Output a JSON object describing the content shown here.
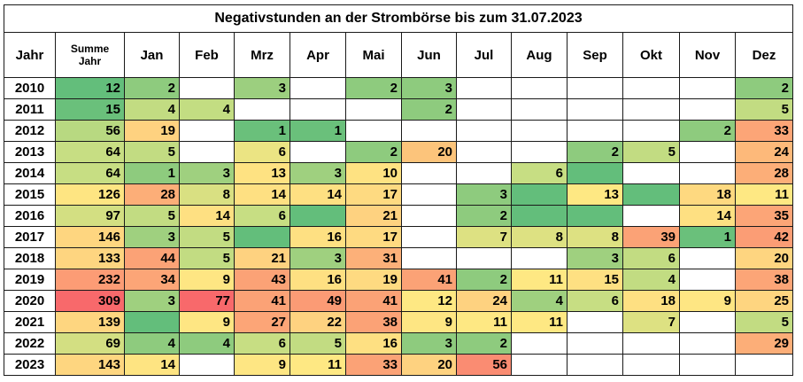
{
  "title": "Negativstunden an der Strombörse bis zum 31.07.2023",
  "header": {
    "year": "Jahr",
    "sum_line1": "Summe",
    "sum_line2": "Jahr",
    "months": [
      "Jan",
      "Feb",
      "Mrz",
      "Apr",
      "Mai",
      "Jun",
      "Jul",
      "Aug",
      "Sep",
      "Okt",
      "Nov",
      "Dez"
    ]
  },
  "chart_data": {
    "type": "table",
    "title": "Negativstunden an der Strombörse bis zum 31.07.2023",
    "columns": [
      "Jahr",
      "Summe Jahr",
      "Jan",
      "Feb",
      "Mrz",
      "Apr",
      "Mai",
      "Jun",
      "Jul",
      "Aug",
      "Sep",
      "Okt",
      "Nov",
      "Dez"
    ],
    "rows": [
      {
        "year": "2010",
        "sum": 12,
        "months": [
          2,
          null,
          3,
          null,
          2,
          3,
          null,
          null,
          null,
          null,
          null,
          2
        ]
      },
      {
        "year": "2011",
        "sum": 15,
        "months": [
          4,
          4,
          null,
          null,
          null,
          2,
          null,
          null,
          null,
          null,
          null,
          5
        ]
      },
      {
        "year": "2012",
        "sum": 56,
        "months": [
          19,
          null,
          1,
          1,
          null,
          null,
          null,
          null,
          null,
          null,
          2,
          33
        ]
      },
      {
        "year": "2013",
        "sum": 64,
        "months": [
          5,
          null,
          6,
          null,
          2,
          20,
          null,
          null,
          2,
          5,
          null,
          24
        ]
      },
      {
        "year": "2014",
        "sum": 64,
        "months": [
          1,
          3,
          13,
          3,
          10,
          null,
          null,
          6,
          null,
          null,
          null,
          28
        ]
      },
      {
        "year": "2015",
        "sum": 126,
        "months": [
          28,
          8,
          14,
          14,
          17,
          null,
          3,
          null,
          13,
          null,
          18,
          11
        ]
      },
      {
        "year": "2016",
        "sum": 97,
        "months": [
          5,
          14,
          6,
          null,
          21,
          null,
          2,
          null,
          null,
          null,
          14,
          35
        ]
      },
      {
        "year": "2017",
        "sum": 146,
        "months": [
          3,
          5,
          null,
          16,
          17,
          null,
          7,
          8,
          8,
          39,
          1,
          42
        ]
      },
      {
        "year": "2018",
        "sum": 133,
        "months": [
          44,
          5,
          21,
          3,
          31,
          null,
          null,
          null,
          3,
          6,
          null,
          20
        ]
      },
      {
        "year": "2019",
        "sum": 232,
        "months": [
          34,
          9,
          43,
          16,
          19,
          41,
          2,
          11,
          15,
          4,
          null,
          38
        ]
      },
      {
        "year": "2020",
        "sum": 309,
        "months": [
          3,
          77,
          41,
          49,
          41,
          12,
          24,
          4,
          6,
          18,
          9,
          25
        ]
      },
      {
        "year": "2021",
        "sum": 139,
        "months": [
          null,
          9,
          27,
          22,
          38,
          9,
          11,
          11,
          null,
          7,
          null,
          5
        ]
      },
      {
        "year": "2022",
        "sum": 69,
        "months": [
          4,
          4,
          6,
          5,
          16,
          3,
          2,
          null,
          null,
          null,
          null,
          29
        ]
      },
      {
        "year": "2023",
        "sum": 143,
        "months": [
          14,
          null,
          9,
          11,
          33,
          20,
          56,
          null,
          null,
          null,
          null,
          null
        ]
      }
    ],
    "row_colors": [
      [
        "#63be7b",
        "#8ecb7e",
        "",
        "#9ccf7f",
        "",
        "#8ecb7e",
        "#8ecb7e",
        "",
        "",
        "",
        "",
        "",
        "#8ecb7e"
      ],
      [
        "#6ac07b",
        "#c2dc82",
        "#c3dd82",
        "",
        "",
        "",
        "#8ecb7e",
        "",
        "",
        "",
        "",
        "",
        "#c2dc82"
      ],
      [
        "#b8d981",
        "#fed280",
        "",
        "#6ac07b",
        "#6ac07b",
        "",
        "",
        "",
        "",
        "",
        "",
        "#8ecb7e",
        "#fca577"
      ],
      [
        "#c7de83",
        "#c2dc82",
        "",
        "#ebe483",
        "",
        "#8ecb7e",
        "#fcc47b",
        "",
        "",
        "#8ecb7e",
        "#c2dc82",
        "",
        "#fdb97a"
      ],
      [
        "#c7de83",
        "#8ecb7e",
        "#9fd07f",
        "#fee282",
        "#9fd07f",
        "#fee282",
        "",
        "",
        "#c7de83",
        "#63be7b",
        "",
        "",
        "#fcae78"
      ],
      [
        "#fee582",
        "#fcae78",
        "#d9e082",
        "#fee082",
        "#fee082",
        "#feda81",
        "",
        "#8ecb7e",
        "#63be7b",
        "#fee883",
        "#63be7b",
        "#fed980",
        "#fee883"
      ],
      [
        "#d3df82",
        "#c2dc82",
        "#fee082",
        "#c7de83",
        "#63be7b",
        "#fed280",
        "",
        "#8ecb7e",
        "#63be7b",
        "#63be7b",
        "",
        "#fee082",
        "#fca577"
      ],
      [
        "#fed680",
        "#9fd07f",
        "#c2dc82",
        "#63be7b",
        "#fee082",
        "#feda81",
        "",
        "#dde182",
        "#dde182",
        "#dde182",
        "#fba276",
        "#6ac07b",
        "#fb9d75"
      ],
      [
        "#fed580",
        "#fba276",
        "#c2dc82",
        "#fed280",
        "#9fd07f",
        "#fcb079",
        "",
        "",
        "",
        "#9fd07f",
        "#c2dc82",
        "",
        "#fed580"
      ],
      [
        "#fc9c75",
        "#fca577",
        "#fee683",
        "#fba276",
        "#fee082",
        "#feda81",
        "#fba276",
        "#8ecb7e",
        "#fee883",
        "#fee082",
        "#c2dc82",
        "",
        "#fca577"
      ],
      [
        "#f8696b",
        "#9fd07f",
        "#f8696b",
        "#fba276",
        "#fb9b75",
        "#fba276",
        "#fee883",
        "#fed280",
        "#9fd07f",
        "#c7de83",
        "#fee082",
        "#fee683",
        "#fed580"
      ],
      [
        "#fed680",
        "#63be7b",
        "#fee683",
        "#fca577",
        "#fed280",
        "#fba276",
        "#fee683",
        "#fee883",
        "#fee883",
        "",
        "#dde182",
        "",
        "#c2dc82"
      ],
      [
        "#d3df82",
        "#8ecb7e",
        "#8ecb7e",
        "#c7de83",
        "#c2dc82",
        "#fee082",
        "#8ecb7e",
        "#8ecb7e",
        "",
        "",
        "",
        "",
        "#fcae78"
      ],
      [
        "#fed680",
        "#fee482",
        "",
        "#fee683",
        "#fee883",
        "#fba276",
        "#fed280",
        "#fa8c72",
        "",
        "",
        "",
        "",
        ""
      ]
    ]
  }
}
